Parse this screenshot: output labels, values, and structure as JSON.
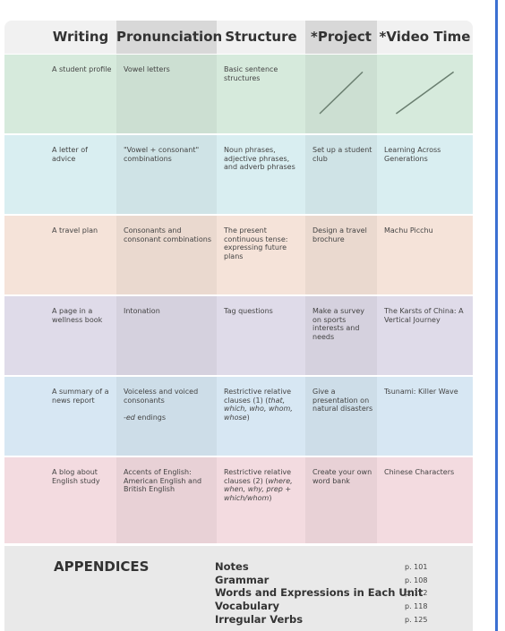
{
  "table": {
    "headers": [
      "Writing",
      "Pronunciation",
      "Structure",
      "*Project",
      "*Video Time"
    ],
    "rows": [
      [
        "A student profile",
        "Vowel letters",
        "Basic sentence structures",
        null,
        null
      ],
      [
        "A letter of advice",
        "\"Vowel + consonant\" combinations",
        "Noun phrases, adjective phrases, and adverb phrases",
        "Set up a student club",
        "Learning Across Generations"
      ],
      [
        "A travel plan",
        "Consonants and consonant combinations",
        "The present continuous tense: expressing future plans",
        "Design a travel brochure",
        "Machu Picchu"
      ],
      [
        "A page in a wellness book",
        "Intonation",
        "Tag questions",
        "Make a survey on sports interests and needs",
        "The Karsts of China: A Vertical Journey"
      ],
      [
        "A summary of a news report",
        [
          "Voiceless and voiced consonants",
          "-ed",
          " endings"
        ],
        [
          "Restrictive relative clauses (1) (",
          "that, which, who, whom, whose",
          ")"
        ],
        "Give a presentation on natural disasters",
        "Tsunami: Killer Wave"
      ],
      [
        "A blog about English study",
        "Accents of English: American English and British English",
        [
          "Restrictive relative clauses (2) (",
          "where, when, why, prep + which/whom",
          ")"
        ],
        "Create your own word bank",
        "Chinese Characters"
      ]
    ]
  },
  "appendices": {
    "title": "APPENDICES",
    "items": [
      {
        "label": "Notes",
        "page": "p. 101"
      },
      {
        "label": "Grammar",
        "page": "p. 108"
      },
      {
        "label": "Words and Expressions in Each Unit",
        "page": "p. 112"
      },
      {
        "label": "Vocabulary",
        "page": "p. 118"
      },
      {
        "label": "Irregular Verbs",
        "page": "p. 125"
      }
    ]
  }
}
